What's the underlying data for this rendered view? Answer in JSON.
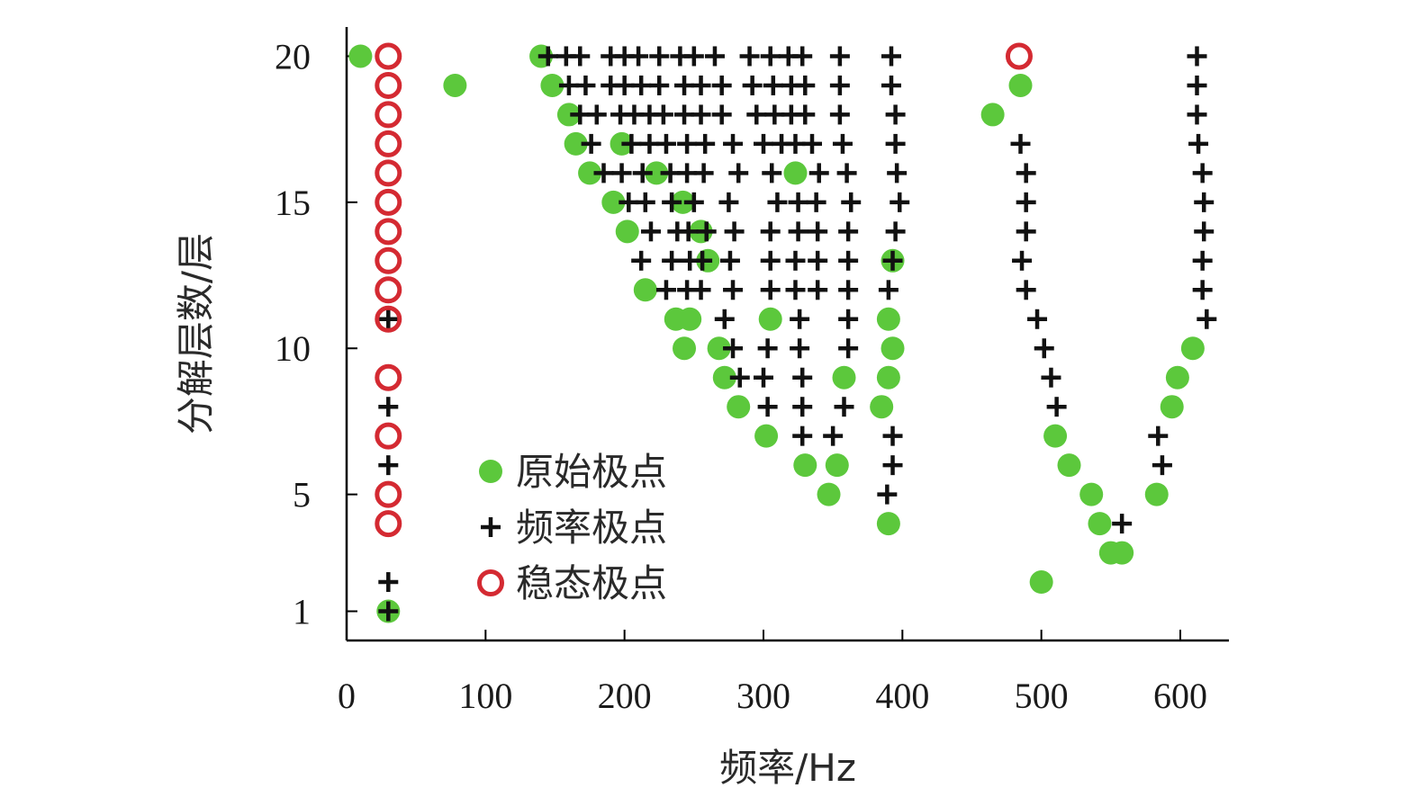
{
  "chart_data": {
    "type": "scatter",
    "title": "",
    "xlabel": "频率/Hz",
    "ylabel": "分解层数/层",
    "xlim": [
      0,
      635
    ],
    "ylim": [
      0,
      21
    ],
    "xticks": [
      0,
      100,
      200,
      300,
      400,
      500,
      600
    ],
    "yticks": [
      1,
      5,
      10,
      15,
      20
    ],
    "grid": false,
    "legend_position": "bottom-left",
    "series": [
      {
        "name": "原始极点",
        "marker": "filled-circle",
        "color": "#5cc83c",
        "points": [
          [
            10,
            20
          ],
          [
            140,
            20
          ],
          [
            78,
            19
          ],
          [
            148,
            19
          ],
          [
            485,
            19
          ],
          [
            160,
            18
          ],
          [
            465,
            18
          ],
          [
            165,
            17
          ],
          [
            198,
            17
          ],
          [
            175,
            16
          ],
          [
            223,
            16
          ],
          [
            323,
            16
          ],
          [
            192,
            15
          ],
          [
            242,
            15
          ],
          [
            202,
            14
          ],
          [
            255,
            14
          ],
          [
            260,
            13
          ],
          [
            393,
            13
          ],
          [
            215,
            12
          ],
          [
            237,
            11
          ],
          [
            247,
            11
          ],
          [
            305,
            11
          ],
          [
            390,
            11
          ],
          [
            243,
            10
          ],
          [
            268,
            10
          ],
          [
            393,
            10
          ],
          [
            609,
            10
          ],
          [
            272,
            9
          ],
          [
            358,
            9
          ],
          [
            390,
            9
          ],
          [
            598,
            9
          ],
          [
            282,
            8
          ],
          [
            385,
            8
          ],
          [
            594,
            8
          ],
          [
            302,
            7
          ],
          [
            510,
            7
          ],
          [
            330,
            6
          ],
          [
            353,
            6
          ],
          [
            520,
            6
          ],
          [
            347,
            5
          ],
          [
            536,
            5
          ],
          [
            583,
            5
          ],
          [
            390,
            4
          ],
          [
            542,
            4
          ],
          [
            550,
            3
          ],
          [
            558,
            3
          ],
          [
            500,
            2
          ],
          [
            30,
            1
          ]
        ]
      },
      {
        "name": "频率极点",
        "marker": "plus",
        "color": "#111111",
        "points": [
          [
            145,
            20
          ],
          [
            158,
            20
          ],
          [
            168,
            20
          ],
          [
            190,
            20
          ],
          [
            200,
            20
          ],
          [
            210,
            20
          ],
          [
            225,
            20
          ],
          [
            240,
            20
          ],
          [
            250,
            20
          ],
          [
            265,
            20
          ],
          [
            290,
            20
          ],
          [
            305,
            20
          ],
          [
            318,
            20
          ],
          [
            328,
            20
          ],
          [
            355,
            20
          ],
          [
            392,
            20
          ],
          [
            612,
            20
          ],
          [
            160,
            19
          ],
          [
            172,
            19
          ],
          [
            190,
            19
          ],
          [
            200,
            19
          ],
          [
            212,
            19
          ],
          [
            225,
            19
          ],
          [
            243,
            19
          ],
          [
            255,
            19
          ],
          [
            270,
            19
          ],
          [
            292,
            19
          ],
          [
            307,
            19
          ],
          [
            320,
            19
          ],
          [
            330,
            19
          ],
          [
            355,
            19
          ],
          [
            392,
            19
          ],
          [
            612,
            19
          ],
          [
            168,
            18
          ],
          [
            180,
            18
          ],
          [
            197,
            18
          ],
          [
            207,
            18
          ],
          [
            218,
            18
          ],
          [
            228,
            18
          ],
          [
            243,
            18
          ],
          [
            255,
            18
          ],
          [
            270,
            18
          ],
          [
            295,
            18
          ],
          [
            308,
            18
          ],
          [
            320,
            18
          ],
          [
            330,
            18
          ],
          [
            355,
            18
          ],
          [
            395,
            18
          ],
          [
            612,
            18
          ],
          [
            176,
            17
          ],
          [
            205,
            17
          ],
          [
            218,
            17
          ],
          [
            230,
            17
          ],
          [
            245,
            17
          ],
          [
            258,
            17
          ],
          [
            278,
            17
          ],
          [
            300,
            17
          ],
          [
            313,
            17
          ],
          [
            323,
            17
          ],
          [
            335,
            17
          ],
          [
            357,
            17
          ],
          [
            395,
            17
          ],
          [
            485,
            17
          ],
          [
            613,
            17
          ],
          [
            185,
            16
          ],
          [
            198,
            16
          ],
          [
            213,
            16
          ],
          [
            233,
            16
          ],
          [
            245,
            16
          ],
          [
            257,
            16
          ],
          [
            282,
            16
          ],
          [
            306,
            16
          ],
          [
            340,
            16
          ],
          [
            360,
            16
          ],
          [
            396,
            16
          ],
          [
            489,
            16
          ],
          [
            616,
            16
          ],
          [
            203,
            15
          ],
          [
            215,
            15
          ],
          [
            234,
            15
          ],
          [
            250,
            15
          ],
          [
            275,
            15
          ],
          [
            310,
            15
          ],
          [
            325,
            15
          ],
          [
            338,
            15
          ],
          [
            363,
            15
          ],
          [
            398,
            15
          ],
          [
            489,
            15
          ],
          [
            617,
            15
          ],
          [
            219,
            14
          ],
          [
            238,
            14
          ],
          [
            246,
            14
          ],
          [
            259,
            14
          ],
          [
            279,
            14
          ],
          [
            305,
            14
          ],
          [
            325,
            14
          ],
          [
            339,
            14
          ],
          [
            361,
            14
          ],
          [
            395,
            14
          ],
          [
            489,
            14
          ],
          [
            617,
            14
          ],
          [
            212,
            13
          ],
          [
            234,
            13
          ],
          [
            247,
            13
          ],
          [
            256,
            13
          ],
          [
            276,
            13
          ],
          [
            305,
            13
          ],
          [
            323,
            13
          ],
          [
            339,
            13
          ],
          [
            361,
            13
          ],
          [
            393,
            13
          ],
          [
            486,
            13
          ],
          [
            616,
            13
          ],
          [
            230,
            12
          ],
          [
            245,
            12
          ],
          [
            255,
            12
          ],
          [
            278,
            12
          ],
          [
            305,
            12
          ],
          [
            323,
            12
          ],
          [
            339,
            12
          ],
          [
            361,
            12
          ],
          [
            390,
            12
          ],
          [
            489,
            12
          ],
          [
            616,
            12
          ],
          [
            272,
            11
          ],
          [
            326,
            11
          ],
          [
            361,
            11
          ],
          [
            497,
            11
          ],
          [
            619,
            11
          ],
          [
            278,
            10
          ],
          [
            303,
            10
          ],
          [
            326,
            10
          ],
          [
            361,
            10
          ],
          [
            502,
            10
          ],
          [
            283,
            9
          ],
          [
            300,
            9
          ],
          [
            328,
            9
          ],
          [
            507,
            9
          ],
          [
            303,
            8
          ],
          [
            328,
            8
          ],
          [
            358,
            8
          ],
          [
            511,
            8
          ],
          [
            328,
            7
          ],
          [
            350,
            7
          ],
          [
            393,
            7
          ],
          [
            584,
            7
          ],
          [
            393,
            6
          ],
          [
            587,
            6
          ],
          [
            389,
            5
          ],
          [
            558,
            4
          ],
          [
            30,
            11
          ],
          [
            30,
            8
          ],
          [
            30,
            6
          ],
          [
            30,
            2
          ],
          [
            30,
            1
          ]
        ]
      },
      {
        "name": "稳态极点",
        "marker": "open-circle",
        "color": "#d42a32",
        "points": [
          [
            30,
            20
          ],
          [
            484,
            20
          ],
          [
            30,
            19
          ],
          [
            30,
            18
          ],
          [
            30,
            17
          ],
          [
            30,
            16
          ],
          [
            30,
            15
          ],
          [
            30,
            14
          ],
          [
            30,
            13
          ],
          [
            30,
            12
          ],
          [
            30,
            11
          ],
          [
            30,
            9
          ],
          [
            30,
            7
          ],
          [
            30,
            5
          ],
          [
            30,
            4
          ]
        ]
      }
    ]
  }
}
